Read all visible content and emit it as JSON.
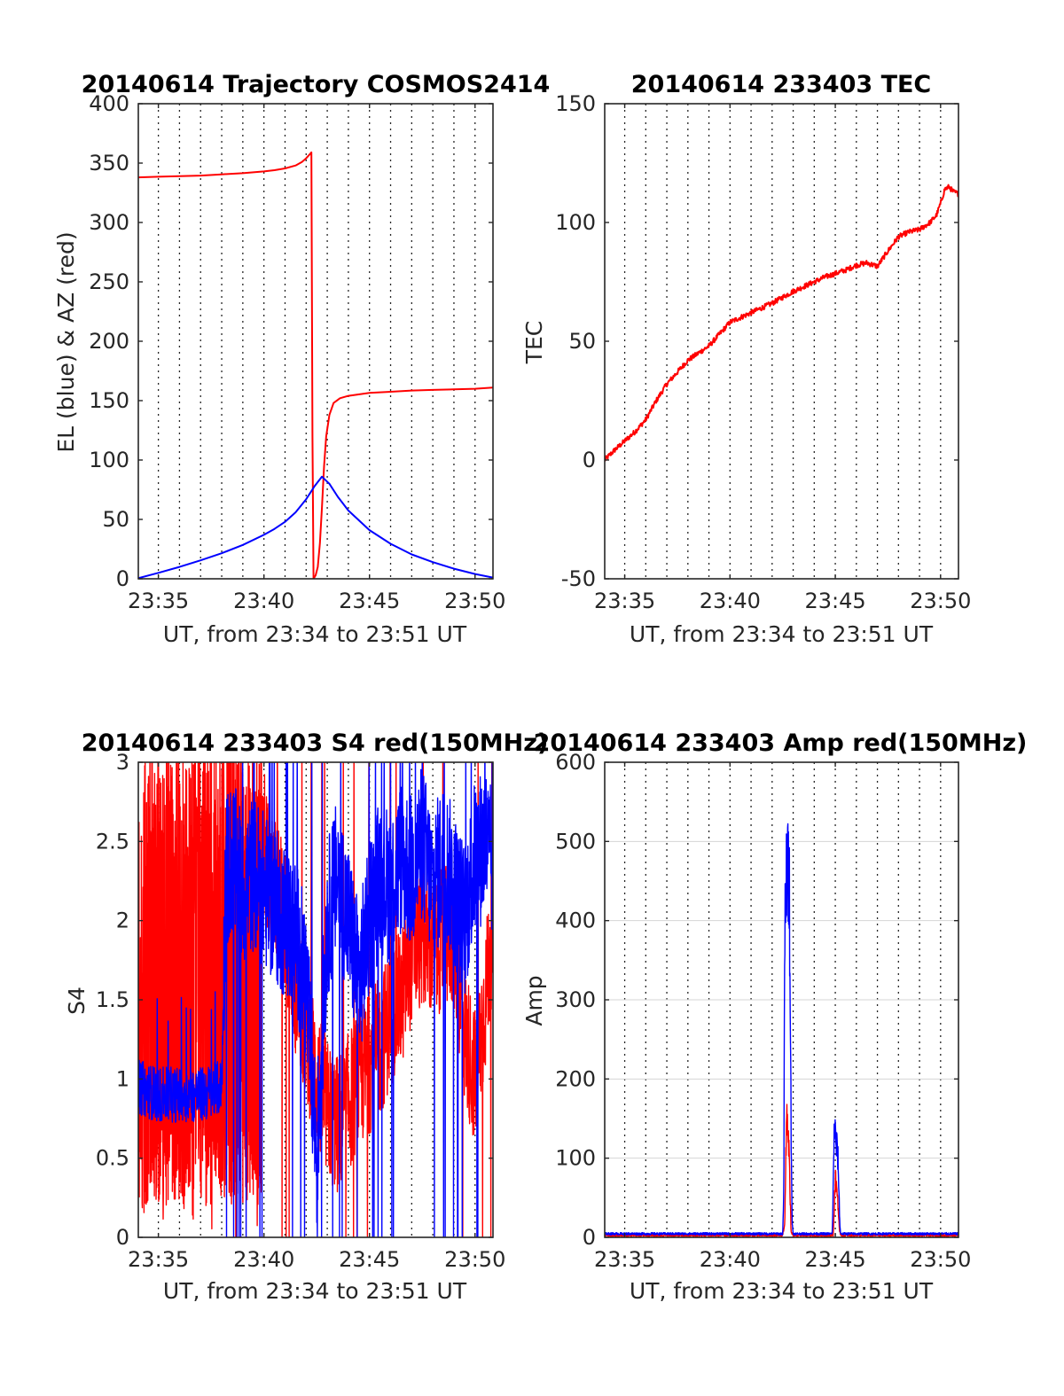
{
  "figure": {
    "panels": [
      {
        "id": "trajectory",
        "title": "20140614 Trajectory COSMOS2414",
        "xlabel": "UT, from 23:34 to 23:51 UT",
        "ylabel": "EL (blue) & AZ (red)"
      },
      {
        "id": "tec",
        "title": "20140614 233403 TEC",
        "xlabel": "UT, from 23:34 to 23:51 UT",
        "ylabel": "TEC"
      },
      {
        "id": "s4",
        "title": "20140614 233403 S4 red(150MHz)",
        "xlabel": "UT, from 23:34 to 23:51 UT",
        "ylabel": "S4"
      },
      {
        "id": "amp",
        "title": "20140614 233403 Amp red(150MHz)",
        "xlabel": "UT, from 23:34 to 23:51 UT",
        "ylabel": "Amp"
      }
    ]
  },
  "chart_data": [
    {
      "type": "line",
      "title": "20140614 Trajectory COSMOS2414",
      "xlabel": "UT, from 23:34 to 23:51 UT",
      "ylabel": "EL (blue) & AZ (red)",
      "x_unit": "minutes after 23:00 UT",
      "xlim": [
        34.05,
        50.85
      ],
      "ylim": [
        0,
        400
      ],
      "xticks": [
        35,
        40,
        45,
        50
      ],
      "xtick_labels": [
        "23:35",
        "23:40",
        "23:45",
        "23:50"
      ],
      "yticks": [
        0,
        50,
        100,
        150,
        200,
        250,
        300,
        350,
        400
      ],
      "grid": "vertical dotted every minute",
      "series": [
        {
          "color": "#ff0000",
          "x": [
            34.05,
            35,
            36,
            37,
            38,
            39,
            40,
            40.5,
            41,
            41.5,
            41.8,
            42,
            42.15,
            42.25,
            42.3,
            42.35,
            42.45,
            42.55,
            42.65,
            42.75,
            42.85,
            42.95,
            43.1,
            43.3,
            43.6,
            44,
            45,
            46,
            47,
            48,
            49,
            50,
            50.85
          ],
          "values": [
            338,
            338.5,
            339,
            339.5,
            340.5,
            341.5,
            343,
            344,
            345.5,
            348,
            351,
            354,
            357,
            359,
            120,
            0,
            3,
            10,
            30,
            60,
            95,
            120,
            138,
            148,
            152,
            154,
            156.5,
            157.5,
            158.5,
            159,
            159.5,
            160,
            161
          ]
        },
        {
          "color": "#0000ff",
          "x": [
            34.05,
            35,
            36,
            37,
            38,
            39,
            40,
            40.5,
            41,
            41.5,
            42,
            42.4,
            42.75,
            43.1,
            43.5,
            44,
            45,
            46,
            47,
            48,
            49,
            50,
            50.85
          ],
          "values": [
            0.5,
            5,
            10,
            15.5,
            21.5,
            28.5,
            37,
            42,
            48,
            56,
            67,
            78,
            86,
            80,
            69,
            57.5,
            41,
            29.5,
            20.5,
            14,
            8.5,
            4,
            1
          ]
        }
      ]
    },
    {
      "type": "line",
      "title": "20140614 233403 TEC",
      "xlabel": "UT, from 23:34 to 23:51 UT",
      "ylabel": "TEC",
      "x_unit": "minutes after 23:00 UT",
      "xlim": [
        34.05,
        50.85
      ],
      "ylim": [
        -50,
        150
      ],
      "xticks": [
        35,
        40,
        45,
        50
      ],
      "xtick_labels": [
        "23:35",
        "23:40",
        "23:45",
        "23:50"
      ],
      "yticks": [
        -50,
        0,
        50,
        100,
        150
      ],
      "grid": "vertical dotted every minute",
      "series": [
        {
          "color": "#ff0000",
          "x": [
            34.05,
            34.5,
            35,
            35.5,
            36,
            36.5,
            37,
            37.5,
            38,
            38.5,
            39,
            39.5,
            40,
            40.5,
            41,
            41.5,
            42,
            42.5,
            43,
            43.5,
            44,
            44.5,
            45,
            45.5,
            46,
            46.5,
            47,
            47.5,
            48,
            48.5,
            49,
            49.5,
            49.8,
            50,
            50.2,
            50.4,
            50.6,
            50.85
          ],
          "values": [
            0,
            4,
            8,
            12,
            17,
            25,
            32,
            37,
            42,
            45,
            48,
            53,
            58,
            60,
            62,
            64,
            66,
            68.5,
            71,
            73,
            75,
            77,
            78.5,
            80,
            82,
            83,
            81.5,
            88,
            94,
            96,
            97,
            100,
            103,
            108,
            114,
            115,
            113,
            112
          ]
        }
      ]
    },
    {
      "type": "line",
      "title": "20140614 233403 S4 red(150MHz)",
      "xlabel": "UT, from 23:34 to 23:51 UT",
      "ylabel": "S4",
      "x_unit": "minutes after 23:00 UT",
      "xlim": [
        34.05,
        50.85
      ],
      "ylim": [
        0,
        3
      ],
      "xticks": [
        35,
        40,
        45,
        50
      ],
      "xtick_labels": [
        "23:35",
        "23:40",
        "23:45",
        "23:50"
      ],
      "yticks": [
        0,
        0.5,
        1,
        1.5,
        2,
        2.5,
        3
      ],
      "grid": "vertical dotted every minute",
      "noise": "dense noisy signal; red saturated 0-3 before about 23:40",
      "series": [
        {
          "color": "#ff0000",
          "x": [
            34.05,
            35,
            36,
            37,
            38,
            39,
            39.5,
            40,
            40.5,
            41,
            41.5,
            42,
            42.5,
            43,
            43.5,
            44,
            44.5,
            45,
            45.5,
            46,
            46.5,
            47,
            47.5,
            48,
            48.5,
            49,
            49.5,
            50,
            50.5,
            50.85
          ],
          "values": [
            1.5,
            1.5,
            1.5,
            1.5,
            1.5,
            1.5,
            1.8,
            2.5,
            2.2,
            2.0,
            1.6,
            1.3,
            1.0,
            0.8,
            0.7,
            0.85,
            1.0,
            1.1,
            1.2,
            1.4,
            1.5,
            1.8,
            1.9,
            1.8,
            1.9,
            1.9,
            1.3,
            1.0,
            1.5,
            2.0
          ]
        },
        {
          "color": "#0000ff",
          "x": [
            34.05,
            35,
            36,
            37,
            37.5,
            38,
            38.2,
            38.5,
            39,
            39.5,
            40,
            40.5,
            41,
            41.5,
            42,
            42.5,
            43,
            43.5,
            44,
            44.5,
            45,
            45.5,
            46,
            46.5,
            47,
            47.5,
            48,
            48.5,
            49,
            49.5,
            50,
            50.5,
            50.85
          ],
          "values": [
            0.95,
            0.9,
            0.9,
            0.9,
            0.92,
            0.95,
            2.3,
            2.4,
            2.2,
            2.3,
            2.2,
            2.1,
            2.0,
            1.9,
            1.6,
            0.5,
            2.0,
            2.3,
            2.0,
            1.6,
            2.0,
            2.3,
            2.2,
            2.4,
            2.3,
            2.5,
            2.2,
            2.4,
            2.2,
            2.0,
            2.4,
            2.5,
            2.3
          ]
        }
      ]
    },
    {
      "type": "line",
      "title": "20140614 233403 Amp red(150MHz)",
      "xlabel": "UT, from 23:34 to 23:51 UT",
      "ylabel": "Amp",
      "x_unit": "minutes after 23:00 UT",
      "xlim": [
        34.05,
        50.85
      ],
      "ylim": [
        0,
        600
      ],
      "xticks": [
        35,
        40,
        45,
        50
      ],
      "xtick_labels": [
        "23:35",
        "23:40",
        "23:45",
        "23:50"
      ],
      "yticks": [
        0,
        100,
        200,
        300,
        400,
        500,
        600
      ],
      "grid": "both (vertical dotted, horizontal light)",
      "series": [
        {
          "color": "#ff0000",
          "x": [
            34.05,
            42.5,
            42.6,
            42.7,
            42.8,
            42.9,
            43.0,
            43.1,
            44.9,
            45.0,
            45.1,
            45.2,
            45.3,
            50.85
          ],
          "values": [
            1,
            1,
            20,
            175,
            120,
            5,
            1,
            1,
            1,
            80,
            60,
            5,
            1,
            1
          ]
        },
        {
          "color": "#0000ff",
          "x": [
            34.05,
            42.5,
            42.55,
            42.6,
            42.65,
            42.7,
            42.75,
            42.8,
            42.85,
            42.9,
            42.95,
            43.0,
            44.85,
            44.9,
            44.95,
            45.0,
            45.05,
            45.1,
            45.15,
            45.2,
            45.25,
            50.85
          ],
          "values": [
            3,
            3,
            50,
            420,
            430,
            530,
            480,
            520,
            400,
            160,
            20,
            3,
            3,
            60,
            155,
            140,
            125,
            120,
            90,
            30,
            3,
            3
          ]
        }
      ]
    }
  ]
}
